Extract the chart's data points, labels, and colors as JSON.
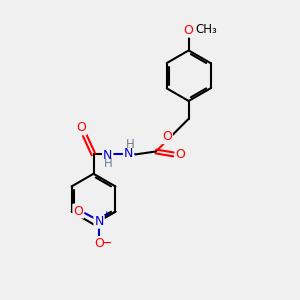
{
  "bg_color": "#f0f0f0",
  "bond_color": "#000000",
  "atom_colors": {
    "O": "#ff0000",
    "N": "#0000cd",
    "H": "#708090",
    "C": "#000000"
  },
  "bond_width": 1.5,
  "font_size_atom": 9,
  "font_size_label": 8.5
}
